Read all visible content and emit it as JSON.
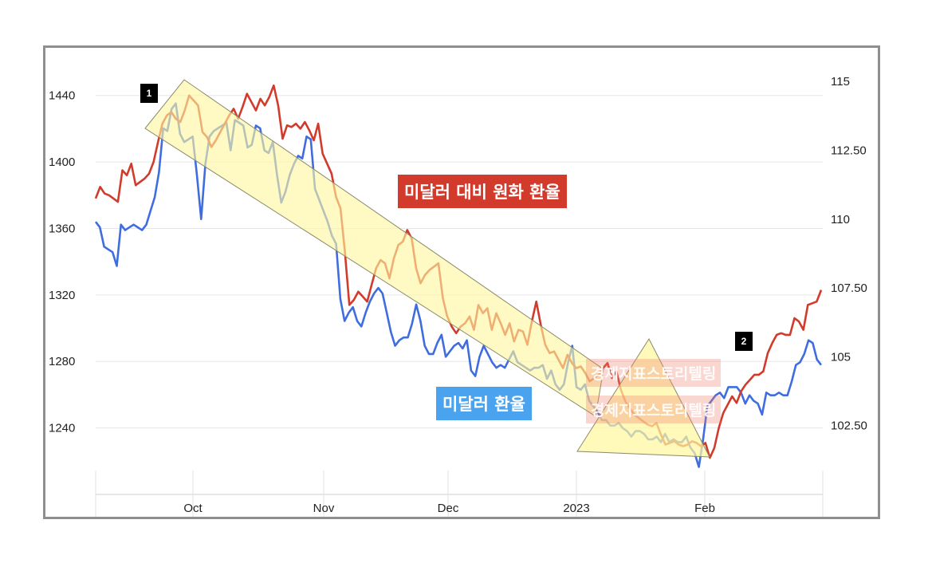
{
  "chart_data": {
    "type": "line",
    "x_ticks": [
      "Oct",
      "Nov",
      "Dec",
      "2023",
      "Feb"
    ],
    "y_left": {
      "ticks": [
        1240,
        1280,
        1320,
        1360,
        1400,
        1440
      ],
      "range": [
        1200,
        1460
      ]
    },
    "y_right": {
      "ticks": [
        "102.50",
        "105",
        "107.50",
        "110",
        "112.50",
        "115"
      ],
      "range": [
        100,
        115.7
      ]
    },
    "series": [
      {
        "name": "미달러 대비 원화 환율",
        "axis": "left",
        "color": "#d23b2c",
        "values": [
          1378,
          1385,
          1381,
          1380,
          1378,
          1376,
          1395,
          1392,
          1399,
          1386,
          1388,
          1390,
          1393,
          1400,
          1412,
          1423,
          1428,
          1430,
          1426,
          1424,
          1431,
          1440,
          1437,
          1434,
          1418,
          1415,
          1409,
          1413,
          1418,
          1423,
          1428,
          1432,
          1426,
          1433,
          1441,
          1436,
          1431,
          1438,
          1434,
          1439,
          1446,
          1434,
          1414,
          1422,
          1421,
          1423,
          1420,
          1424,
          1419,
          1413,
          1423,
          1405,
          1399,
          1393,
          1379,
          1372,
          1346,
          1314,
          1317,
          1322,
          1319,
          1316,
          1326,
          1336,
          1341,
          1339,
          1330,
          1342,
          1350,
          1352,
          1359,
          1354,
          1336,
          1327,
          1332,
          1335,
          1337,
          1339,
          1318,
          1307,
          1301,
          1297,
          1301,
          1303,
          1307,
          1299,
          1314,
          1309,
          1312,
          1299,
          1309,
          1303,
          1296,
          1303,
          1292,
          1299,
          1298,
          1290,
          1304,
          1316,
          1302,
          1290,
          1285,
          1286,
          1281,
          1276,
          1284,
          1279,
          1276,
          1277,
          1273,
          1268,
          1270,
          1272,
          1276,
          1279,
          1270,
          1274,
          1263,
          1256,
          1252,
          1248,
          1246,
          1244,
          1242,
          1241,
          1243,
          1236,
          1230,
          1231,
          1232,
          1230,
          1229,
          1230,
          1232,
          1231,
          1229,
          1231,
          1222,
          1228,
          1240,
          1249,
          1254,
          1259,
          1255,
          1262,
          1266,
          1269,
          1272,
          1272,
          1274,
          1285,
          1291,
          1296,
          1297,
          1296,
          1296,
          1306,
          1304,
          1299,
          1314,
          1315,
          1316,
          1323
        ]
      },
      {
        "name": "미달러 환율",
        "axis": "right",
        "color": "#3f6de0",
        "values": [
          109.9,
          109.7,
          109.0,
          108.9,
          108.8,
          108.3,
          109.8,
          109.6,
          109.7,
          109.8,
          109.7,
          109.6,
          109.8,
          110.3,
          110.8,
          111.7,
          113.3,
          113.2,
          114.0,
          114.2,
          113.1,
          112.8,
          112.9,
          113.0,
          111.6,
          110.0,
          112.0,
          113.0,
          113.2,
          113.3,
          113.4,
          113.5,
          112.5,
          113.6,
          113.5,
          113.4,
          112.6,
          112.7,
          113.4,
          113.3,
          112.5,
          112.4,
          112.8,
          111.6,
          110.6,
          111.0,
          111.6,
          112.0,
          112.3,
          112.2,
          113.0,
          112.9,
          111.1,
          110.7,
          110.3,
          109.9,
          109.4,
          109.1,
          107.1,
          106.3,
          106.6,
          106.8,
          106.3,
          106.1,
          106.6,
          107.0,
          107.3,
          107.5,
          107.3,
          106.6,
          105.9,
          105.4,
          105.6,
          105.7,
          105.7,
          106.2,
          106.9,
          106.3,
          105.4,
          105.1,
          105.1,
          105.5,
          105.8,
          105.0,
          105.2,
          105.4,
          105.5,
          105.3,
          105.6,
          104.5,
          104.3,
          105.0,
          105.4,
          105.1,
          104.8,
          104.6,
          104.7,
          104.6,
          104.9,
          105.2,
          104.8,
          104.7,
          104.6,
          104.5,
          104.6,
          104.6,
          104.7,
          104.2,
          104.5,
          104.0,
          103.8,
          104.0,
          104.8,
          105.4,
          103.9,
          103.8,
          104.0,
          103.4,
          103.2,
          103.0,
          102.7,
          102.7,
          102.5,
          102.5,
          102.6,
          102.4,
          102.3,
          102.1,
          102.3,
          102.3,
          102.2,
          102.0,
          102.0,
          102.1,
          101.9,
          102.2,
          101.9,
          102.0,
          101.9,
          101.9,
          102.1,
          101.7,
          101.5,
          101.0,
          102.0,
          103.2,
          103.4,
          103.6,
          103.7,
          103.5,
          103.9,
          103.9,
          103.9,
          103.7,
          103.3,
          103.6,
          103.4,
          103.3,
          102.9,
          103.7,
          103.6,
          103.6,
          103.7,
          103.6,
          103.6,
          104.1,
          104.7,
          104.8,
          105.1,
          105.6,
          105.5,
          104.9,
          104.7
        ]
      }
    ],
    "annotations": [
      "1",
      "2",
      "경제지표스토리텔링"
    ]
  },
  "labels": {
    "krw_series": "미달러 대비 원화 환율",
    "usd_series": "미달러 환율",
    "marker1": "1",
    "marker2": "2",
    "watermark": "경제지표스토리텔링"
  }
}
